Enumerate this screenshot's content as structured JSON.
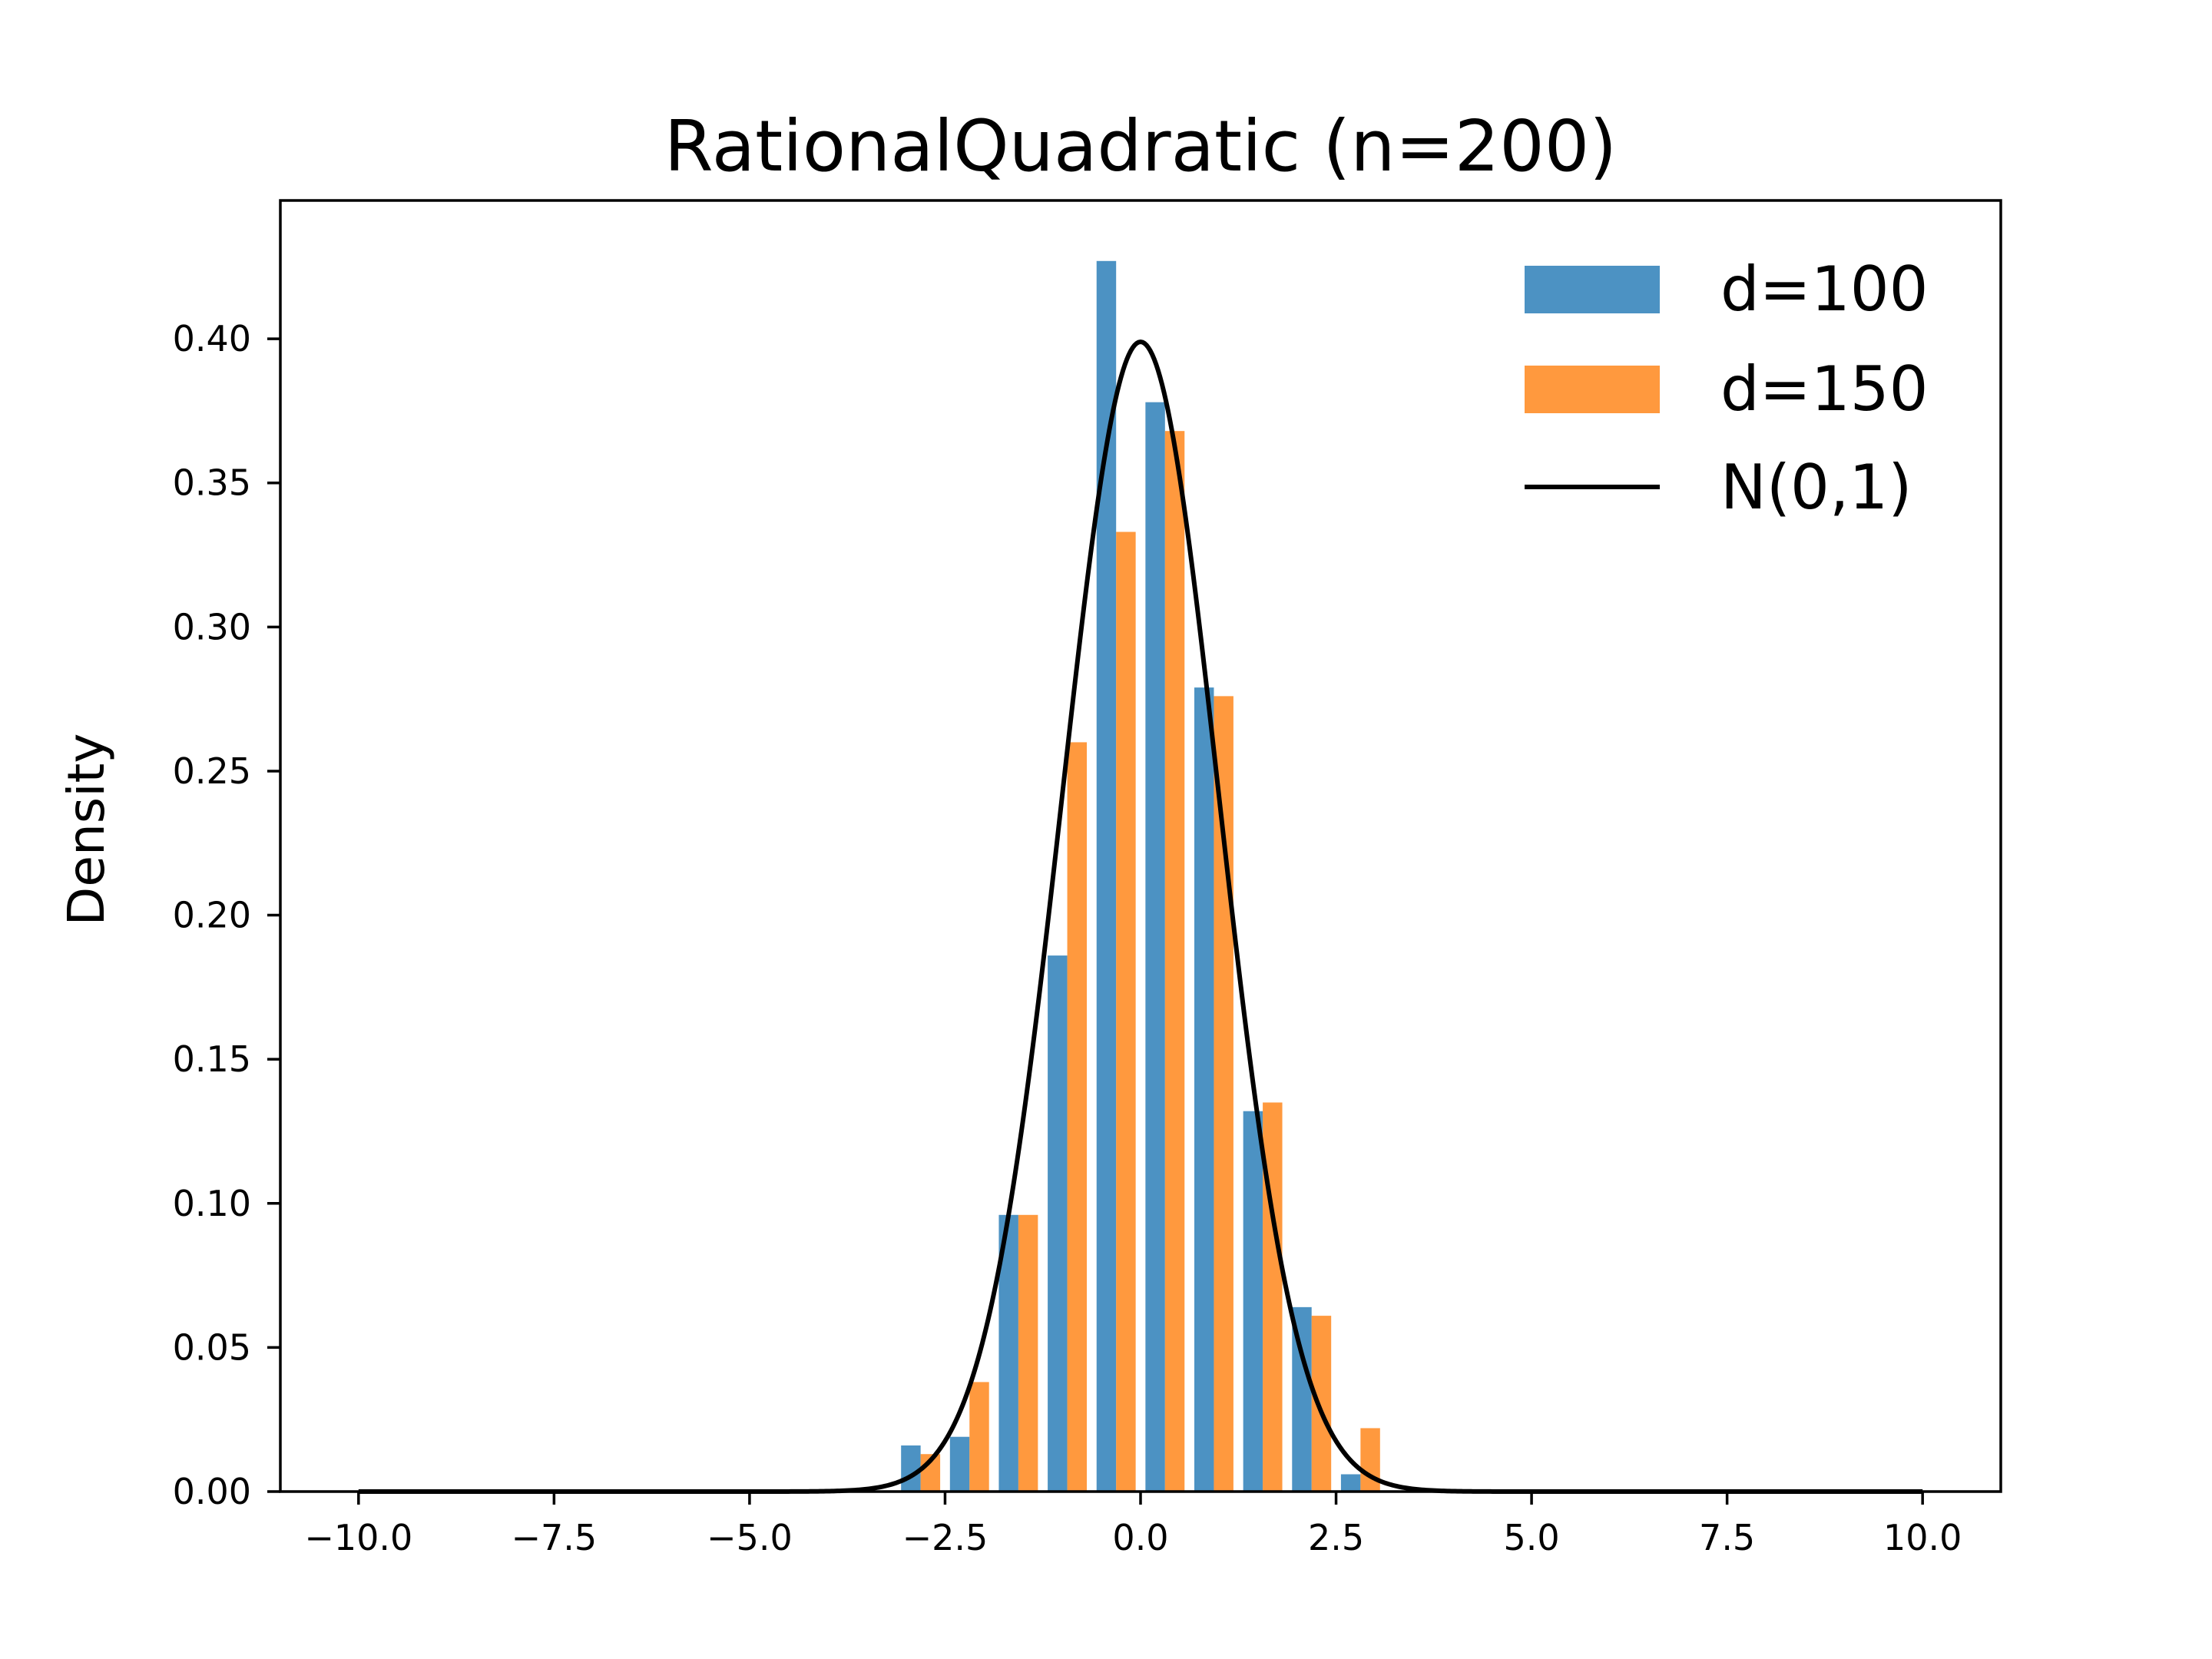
{
  "chart_data": {
    "type": "bar",
    "title": "RationalQuadratic (n=200)",
    "xlabel": "",
    "ylabel": "Density",
    "xlim": [
      -11.0,
      11.0
    ],
    "ylim": [
      0.0,
      0.448
    ],
    "xticks": [
      -10.0,
      -7.5,
      -5.0,
      -2.5,
      0.0,
      2.5,
      5.0,
      7.5,
      10.0
    ],
    "xtick_labels": [
      "−10.0",
      "−7.5",
      "−5.0",
      "−2.5",
      "0.0",
      "2.5",
      "5.0",
      "7.5",
      "10.0"
    ],
    "yticks": [
      0.0,
      0.05,
      0.1,
      0.15,
      0.2,
      0.25,
      0.3,
      0.35,
      0.4
    ],
    "ytick_labels": [
      "0.00",
      "0.05",
      "0.10",
      "0.15",
      "0.20",
      "0.25",
      "0.30",
      "0.35",
      "0.40"
    ],
    "grid": false,
    "legend_position": "top-right",
    "bin_edges": [
      -3.125,
      -2.5,
      -1.875,
      -1.25,
      -0.625,
      0.0,
      0.625,
      1.25,
      1.875,
      2.5,
      3.125
    ],
    "series": [
      {
        "name": "d=100",
        "kind": "histogram",
        "color": "#1f77b4",
        "values": [
          0.016,
          0.019,
          0.096,
          0.186,
          0.427,
          0.378,
          0.279,
          0.132,
          0.064,
          0.006
        ]
      },
      {
        "name": "d=150",
        "kind": "histogram",
        "color": "#ff7f0e",
        "values": [
          0.013,
          0.038,
          0.096,
          0.26,
          0.333,
          0.368,
          0.276,
          0.135,
          0.061,
          0.022
        ]
      },
      {
        "name": "N(0,1)",
        "kind": "line",
        "color": "#000000",
        "function": "normal_pdf",
        "mean": 0,
        "std": 1,
        "x_range": [
          -10,
          10
        ]
      }
    ]
  }
}
